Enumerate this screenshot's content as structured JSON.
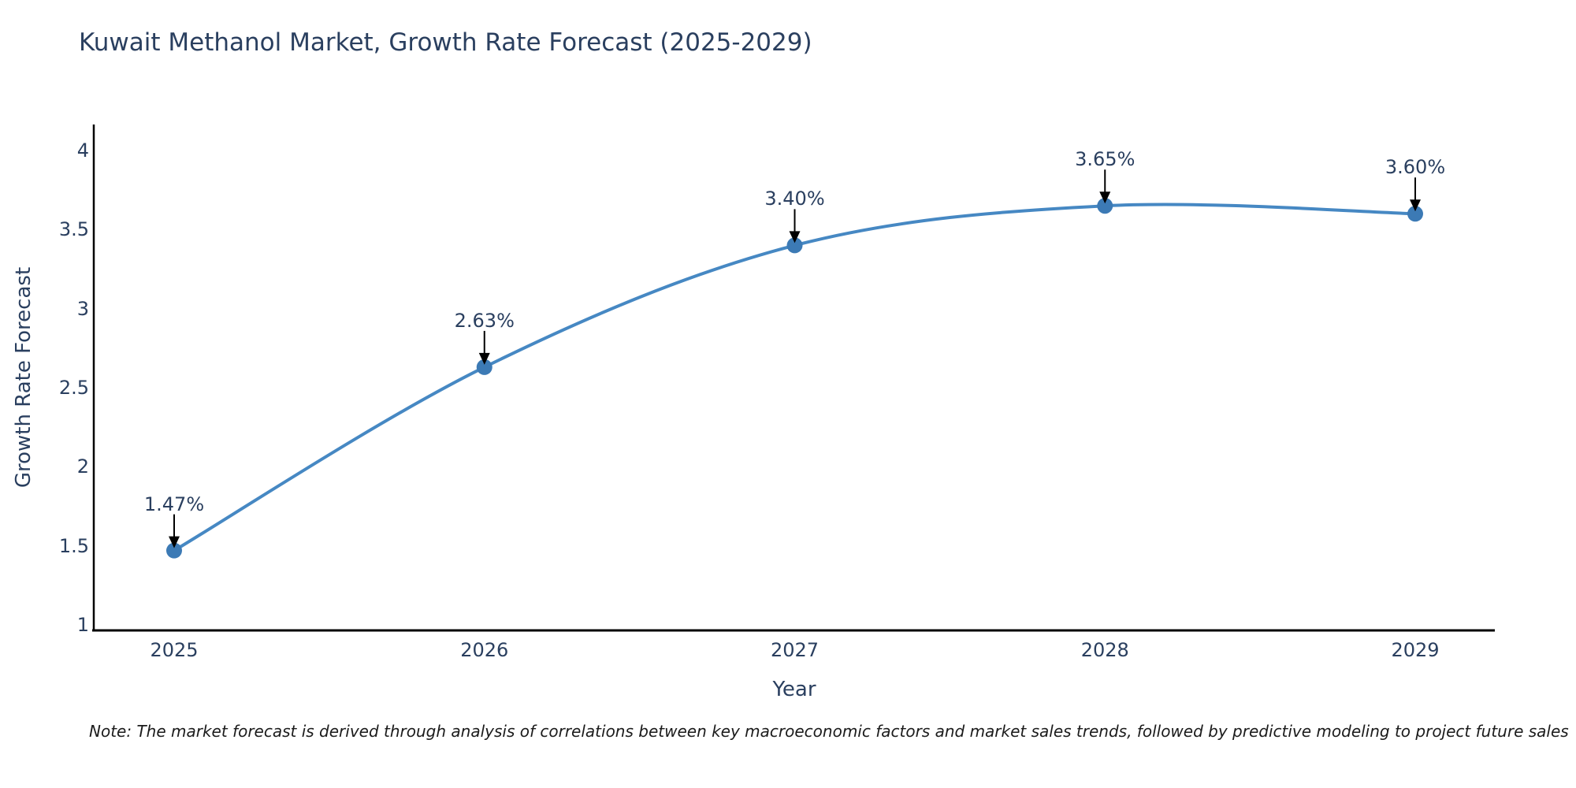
{
  "chart": {
    "title": "Kuwait Methanol Market, Growth Rate Forecast (2025-2029)",
    "xlabel": "Year",
    "ylabel": "Growth Rate Forecast",
    "note": "Note: The market forecast is derived through analysis of correlations between key macroeconomic factors and market sales trends, followed by predictive modeling to project future sales"
  },
  "chart_data": {
    "type": "line",
    "title": "Kuwait Methanol Market, Growth Rate Forecast (2025-2029)",
    "xlabel": "Year",
    "ylabel": "Growth Rate Forecast",
    "x": [
      2025,
      2026,
      2027,
      2028,
      2029
    ],
    "values": [
      1.47,
      2.63,
      3.4,
      3.65,
      3.6
    ],
    "point_labels": [
      "1.47%",
      "2.63%",
      "3.40%",
      "3.65%",
      "3.60%"
    ],
    "xtick_labels": [
      "2025",
      "2026",
      "2027",
      "2028",
      "2029"
    ],
    "yticks": [
      1,
      1.5,
      2,
      2.5,
      3,
      3.5,
      4
    ],
    "ylim": [
      1,
      4.2
    ],
    "grid": false,
    "legend_position": "none",
    "line_shape": "spline",
    "annotation_style": "label-with-down-arrow",
    "colors": {
      "line": "#4688c3",
      "marker": "#3c7ab5",
      "arrow": "#000000",
      "axis": "#000000",
      "text": "#2a3f5f",
      "note_text": "#1b1b1b",
      "background": "#ffffff"
    }
  }
}
